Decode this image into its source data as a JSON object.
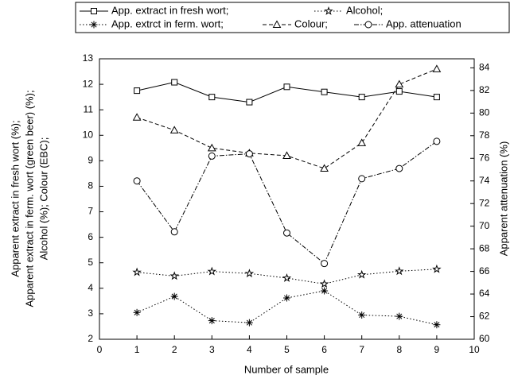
{
  "chart_data": {
    "type": "line",
    "x_label": "Number of sample",
    "y_label": [
      "Apparent extract in fresh wort (%);",
      "Apparent extract in ferm. wort (green beer) (%);",
      "Alcohol (%); Colour (EBC);"
    ],
    "y2_label": "Apparent attenuation (%)",
    "xlim": [
      0,
      10
    ],
    "xticks": [
      0,
      1,
      2,
      3,
      4,
      5,
      6,
      7,
      8,
      9,
      10
    ],
    "ylim": [
      2,
      13
    ],
    "yticks": [
      2,
      3,
      4,
      5,
      6,
      7,
      8,
      9,
      10,
      11,
      12,
      13
    ],
    "y2lim": [
      60,
      84.8
    ],
    "y2ticks": [
      60,
      62,
      64,
      66,
      68,
      70,
      72,
      74,
      76,
      78,
      80,
      82,
      84
    ],
    "x": [
      1,
      2,
      3,
      4,
      5,
      6,
      7,
      8,
      9
    ],
    "series": [
      {
        "name": "App. extract in fresh wort;",
        "color": "#000000",
        "marker": "square",
        "line_style": "solid",
        "values": [
          11.75,
          12.08,
          11.5,
          11.3,
          11.9,
          11.7,
          11.5,
          11.72,
          11.5
        ]
      },
      {
        "name": "Alcohol;",
        "color": "#000000",
        "marker": "star",
        "line_style": "dotted",
        "values": [
          4.63,
          4.48,
          4.66,
          4.58,
          4.4,
          4.17,
          4.53,
          4.67,
          4.75
        ]
      },
      {
        "name": "App. extrct in ferm. wort;",
        "color": "#000000",
        "marker": "asterisk",
        "line_style": "dotted",
        "values": [
          3.05,
          3.68,
          2.73,
          2.65,
          3.62,
          3.9,
          2.95,
          2.9,
          2.57
        ]
      },
      {
        "name": "Colour;",
        "color": "#000000",
        "marker": "triangle",
        "line_style": "dashed",
        "values": [
          10.7,
          10.2,
          9.5,
          9.3,
          9.2,
          8.7,
          9.7,
          12.0,
          12.6
        ]
      },
      {
        "name": "App. attenuation",
        "color": "#000000",
        "marker": "circle",
        "line_style": "dashdot",
        "axis": "y2",
        "values": [
          74.0,
          69.5,
          76.2,
          76.4,
          69.4,
          66.7,
          74.2,
          75.1,
          77.5
        ]
      }
    ]
  }
}
